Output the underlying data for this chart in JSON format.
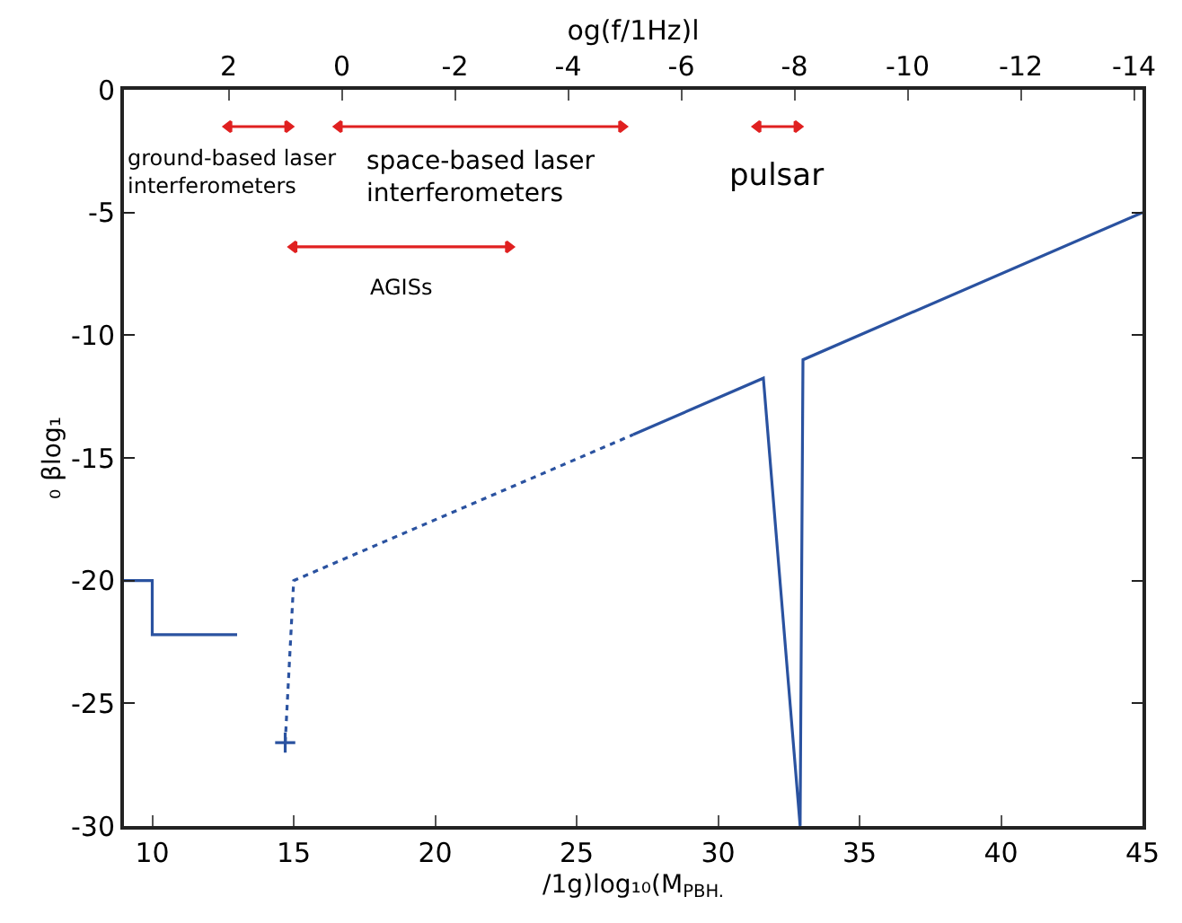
{
  "chart_data": {
    "type": "line",
    "xlabel": "/1g)log₁₀(M$_{PBH.}$",
    "ylabel": "₀ βlog₁",
    "x2label": "og(f/1Hz)l",
    "xlim": [
      9,
      45
    ],
    "xticks": [
      10,
      15,
      20,
      25,
      30,
      35,
      40,
      45
    ],
    "ylim": [
      -30,
      0
    ],
    "yticks": [
      0,
      -5,
      -10,
      -15,
      -20,
      -25,
      -30
    ],
    "x2lim": [
      3.85,
      -14.15
    ],
    "x2ticks": [
      2,
      0,
      -2,
      -4,
      -6,
      -8,
      -10,
      -12,
      -14
    ],
    "series": [
      {
        "color": "#2a52a0",
        "line_style": "solid",
        "x": [
          9,
          10,
          10,
          13
        ],
        "values": [
          -20,
          -20,
          -22.2,
          -22.2
        ]
      },
      {
        "color": "#2a52a0",
        "line_style": "dotted",
        "x": [
          14.7,
          15,
          27
        ],
        "values": [
          -26.6,
          -20,
          -14.05
        ]
      },
      {
        "type": "scatter",
        "marker": "cross",
        "color": "#2a52a0",
        "x": [
          14.7
        ],
        "values": [
          -26.6
        ]
      },
      {
        "color": "#2a52a0",
        "line_style": "solid",
        "x": [
          27,
          31.6,
          32.9,
          33,
          45
        ],
        "values": [
          -14.05,
          -11.75,
          -30,
          -11,
          -5
        ]
      },
      {
        "name": "ground-based laser\ninterferometers",
        "marker": "triangle",
        "color": "#e02020",
        "line_style": "solid",
        "x": [
          12.7,
          14.8
        ],
        "values": [
          -1.5,
          -1.5
        ]
      },
      {
        "name": "space-based laser\ninterferometers",
        "marker": "triangle",
        "color": "#e02020",
        "line_style": "solid",
        "x": [
          16.6,
          26.6
        ],
        "values": [
          -1.5,
          -1.5
        ]
      },
      {
        "name": "pulsar",
        "marker": "triangle",
        "color": "#e02020",
        "line_style": "solid",
        "x": [
          31.4,
          32.8
        ],
        "values": [
          -1.5,
          -1.5
        ]
      },
      {
        "name": "AGISs",
        "marker": "triangle",
        "color": "#e02020",
        "line_style": "solid",
        "x": [
          15,
          22.6
        ],
        "values": [
          -6.4,
          -6.4
        ]
      }
    ]
  }
}
